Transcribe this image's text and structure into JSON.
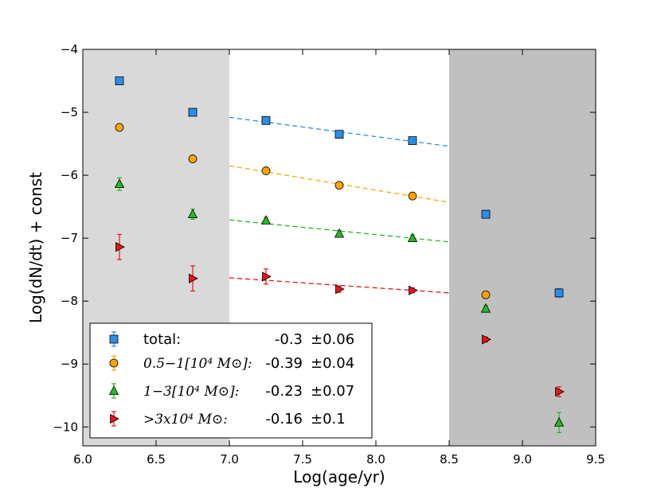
{
  "chart_data": {
    "type": "scatter",
    "title": "",
    "xlabel": "Log(age/yr)",
    "ylabel": "Log(dN/dt) + const",
    "xlim": [
      6.0,
      9.5
    ],
    "ylim": [
      -10.3,
      -4.0
    ],
    "xticks": [
      6.0,
      6.5,
      7.0,
      7.5,
      8.0,
      8.5,
      9.0,
      9.5
    ],
    "xtick_labels": [
      "6.0",
      "6.5",
      "7.0",
      "7.5",
      "8.0",
      "8.5",
      "9.0",
      "9.5"
    ],
    "yticks": [
      -4,
      -5,
      -6,
      -7,
      -8,
      -9,
      -10
    ],
    "ytick_labels": [
      "−4",
      "−5",
      "−6",
      "−7",
      "−8",
      "−9",
      "−10"
    ],
    "shaded_regions": [
      {
        "x": [
          6.0,
          7.0
        ],
        "color": "#d9d9d9"
      },
      {
        "x": [
          8.5,
          9.5
        ],
        "color": "#c0c0c0"
      }
    ],
    "series": [
      {
        "name": "total",
        "legend_label": "total:",
        "marker": "square",
        "color": "#2b8de8",
        "errcolor": "#2b8de8",
        "slope_text": "-0.3",
        "err_text": "±0.06",
        "x": [
          6.25,
          6.75,
          7.25,
          7.75,
          8.25,
          8.75,
          9.25
        ],
        "y": [
          -4.5,
          -5.0,
          -5.13,
          -5.35,
          -5.45,
          -6.62,
          -7.87
        ],
        "yerr": [
          0.03,
          0.03,
          0.03,
          0.03,
          0.03,
          0.03,
          0.07
        ],
        "fit": {
          "x": [
            7.0,
            8.5
          ],
          "y": [
            -5.08,
            -5.54
          ],
          "color": "#2b8de8"
        }
      },
      {
        "name": "0.5-1",
        "legend_label": "0.5−1[10⁴ M⊙]:",
        "marker": "circle",
        "color": "#ffa500",
        "errcolor": "#ffa500",
        "slope_text": "-0.39",
        "err_text": "±0.04",
        "x": [
          6.25,
          6.75,
          7.25,
          7.75,
          8.25,
          8.75
        ],
        "y": [
          -5.24,
          -5.74,
          -5.93,
          -6.16,
          -6.33,
          -7.9
        ],
        "yerr": [
          0.05,
          0.04,
          0.04,
          0.03,
          0.03,
          0.05
        ],
        "fit": {
          "x": [
            7.0,
            8.5
          ],
          "y": [
            -5.85,
            -6.43
          ],
          "color": "#ffa500"
        }
      },
      {
        "name": "1-3",
        "legend_label": "1−3[10⁴ M⊙]:",
        "marker": "triangle",
        "color": "#22bb22",
        "errcolor": "#22bb22",
        "slope_text": "-0.23",
        "err_text": "±0.07",
        "x": [
          6.25,
          6.75,
          7.25,
          7.75,
          8.25,
          8.75,
          9.25
        ],
        "y": [
          -6.14,
          -6.62,
          -6.72,
          -6.93,
          -7.0,
          -8.12,
          -9.93
        ],
        "yerr": [
          0.1,
          0.08,
          0.05,
          0.05,
          0.05,
          0.05,
          0.16
        ],
        "fit": {
          "x": [
            7.0,
            8.5
          ],
          "y": [
            -6.71,
            -7.06
          ],
          "color": "#22bb22"
        }
      },
      {
        "name": ">3",
        "legend_label": ">3x10⁴ M⊙:",
        "marker": "triangle-right",
        "color": "#e8141a",
        "errcolor": "#e8141a",
        "slope_text": "-0.16",
        "err_text": "±0.1",
        "x": [
          6.25,
          6.75,
          7.25,
          7.75,
          8.25,
          8.75,
          9.25
        ],
        "y": [
          -7.14,
          -7.64,
          -7.61,
          -7.81,
          -7.83,
          -8.61,
          -9.44
        ],
        "yerr": [
          0.2,
          0.2,
          0.12,
          0.05,
          0.04,
          0.04,
          0.08
        ],
        "fit": {
          "x": [
            7.0,
            8.5
          ],
          "y": [
            -7.63,
            -7.87
          ],
          "color": "#e8141a"
        }
      }
    ],
    "legend": {
      "placement": "lower-left"
    }
  }
}
